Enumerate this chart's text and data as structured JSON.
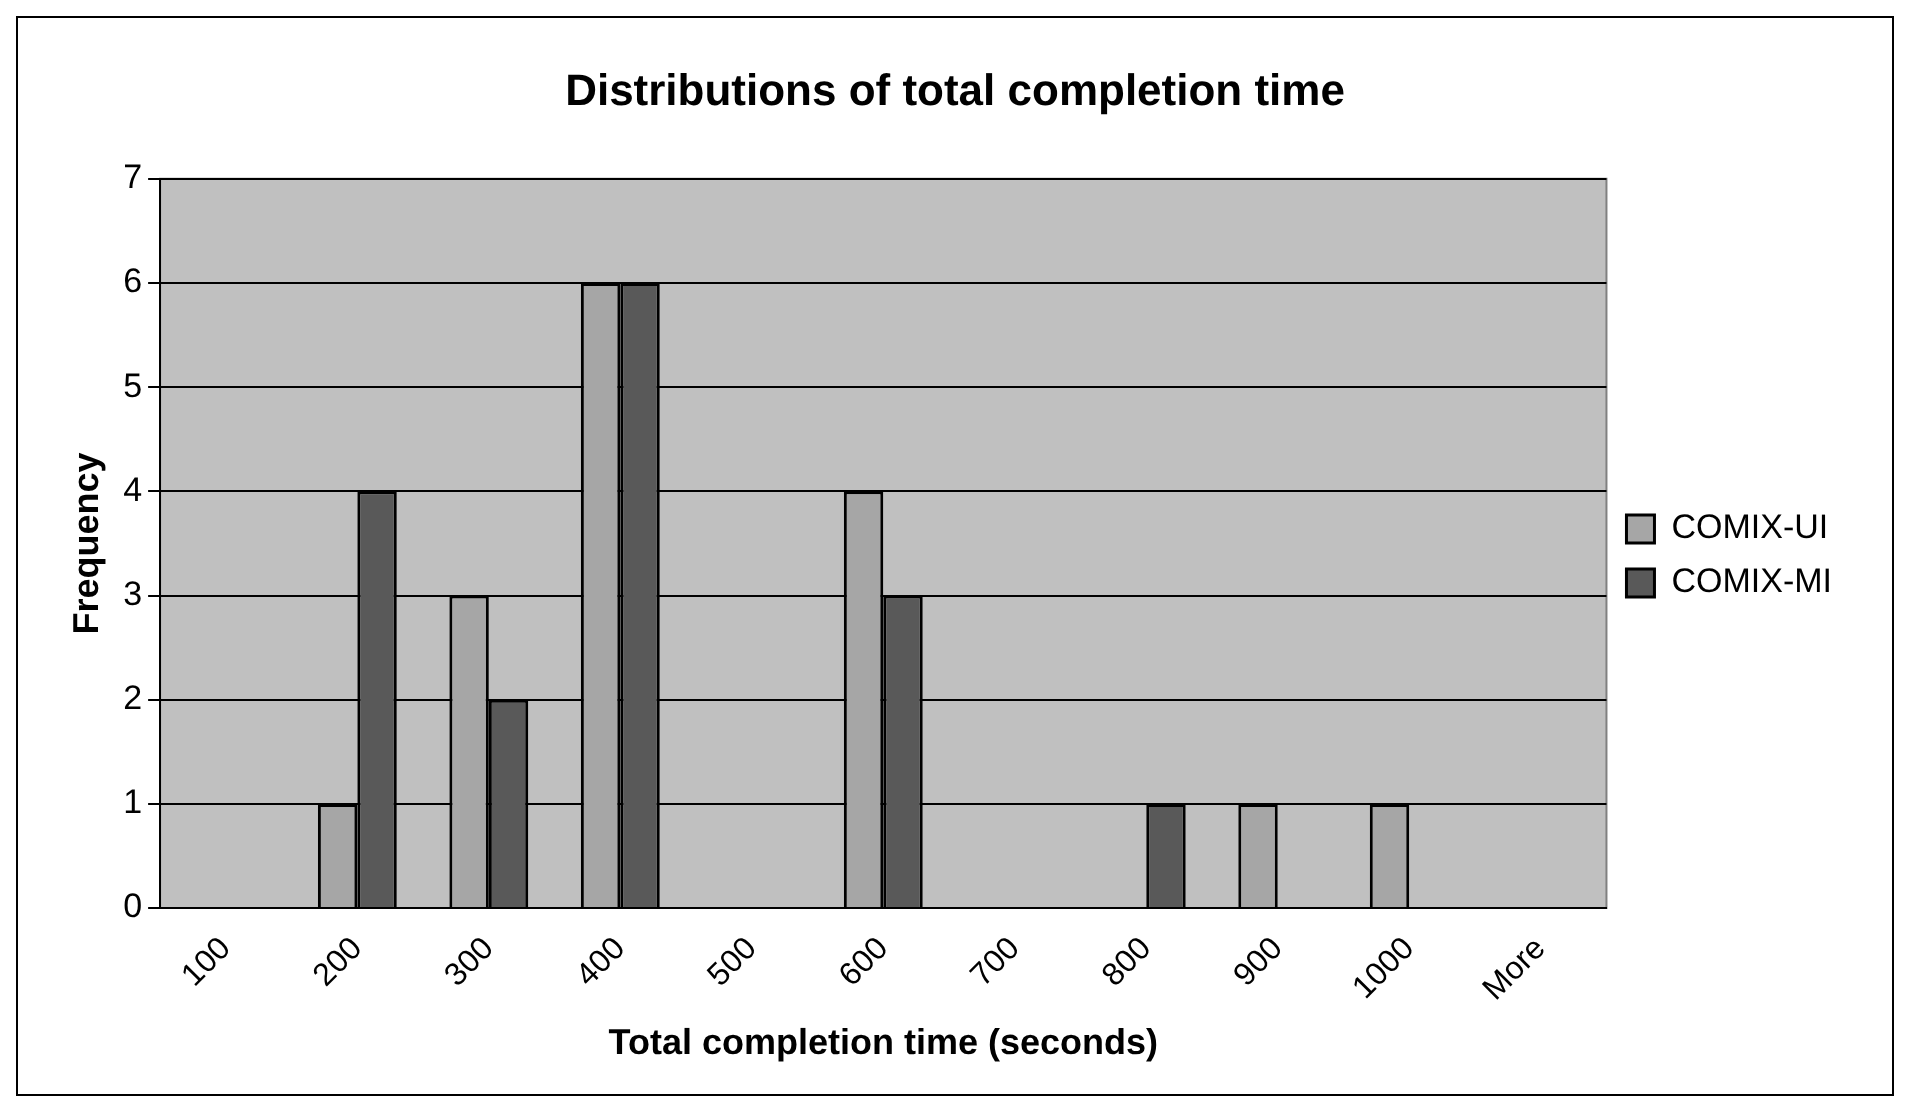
{
  "chart_data": {
    "type": "bar",
    "title": "Distributions of total completion time",
    "xlabel": "Total completion time (seconds)",
    "ylabel": "Frequency",
    "categories": [
      "100",
      "200",
      "300",
      "400",
      "500",
      "600",
      "700",
      "800",
      "900",
      "1000",
      "More"
    ],
    "series": [
      {
        "name": "COMIX-UI",
        "color": "#a6a6a6",
        "values": [
          0,
          1,
          3,
          6,
          0,
          4,
          0,
          0,
          1,
          1,
          0
        ]
      },
      {
        "name": "COMIX-MI",
        "color": "#595959",
        "values": [
          0,
          4,
          2,
          6,
          0,
          3,
          0,
          1,
          0,
          0,
          0
        ]
      }
    ],
    "ylim": [
      0,
      7
    ],
    "yticks": [
      0,
      1,
      2,
      3,
      4,
      5,
      6,
      7
    ],
    "grid": "y",
    "legend": "right"
  }
}
